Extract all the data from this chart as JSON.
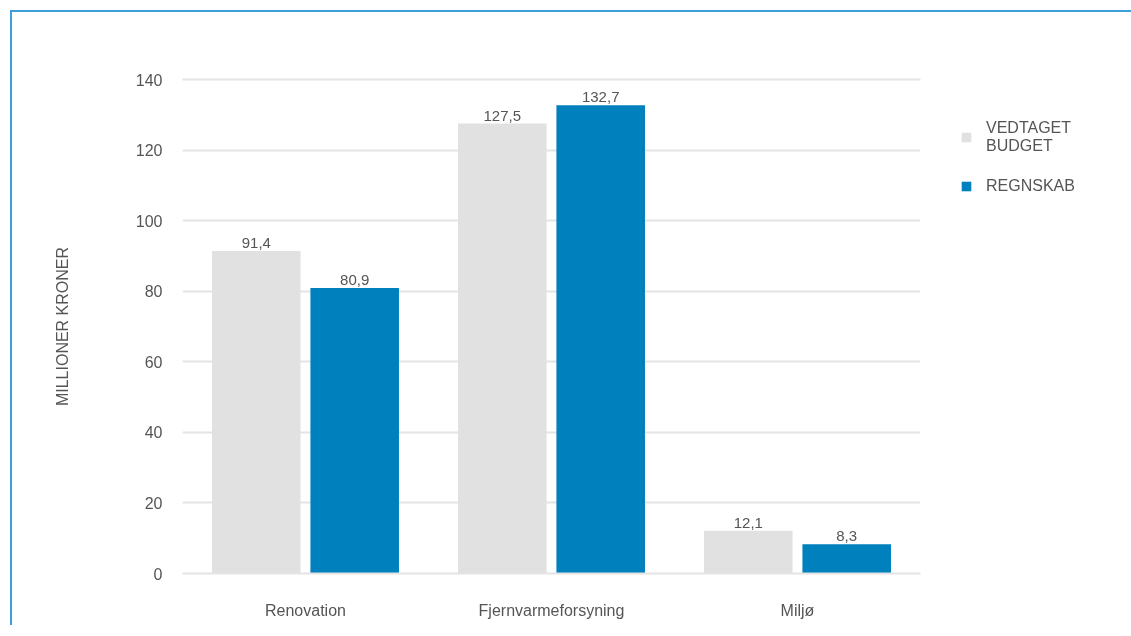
{
  "chart_data": {
    "type": "bar",
    "ylabel": "MILLIONER KRONER",
    "categories": [
      "Renovation",
      "Fjernvarmeforsyning",
      "Miljø"
    ],
    "series": [
      {
        "name": "VEDTAGET BUDGET",
        "color": "#e1e1e1",
        "values": [
          91.4,
          127.5,
          12.1
        ],
        "value_labels": [
          "91,4",
          "127,5",
          "12,1"
        ]
      },
      {
        "name": "REGNSKAB",
        "color": "#0080bd",
        "values": [
          80.9,
          132.7,
          8.3
        ],
        "value_labels": [
          "80,9",
          "132,7",
          "8,3"
        ]
      }
    ],
    "ylim": [
      0,
      140
    ],
    "yticks": [
      0,
      20,
      40,
      60,
      80,
      100,
      120,
      140
    ],
    "grid": "y",
    "legend": "top right"
  }
}
